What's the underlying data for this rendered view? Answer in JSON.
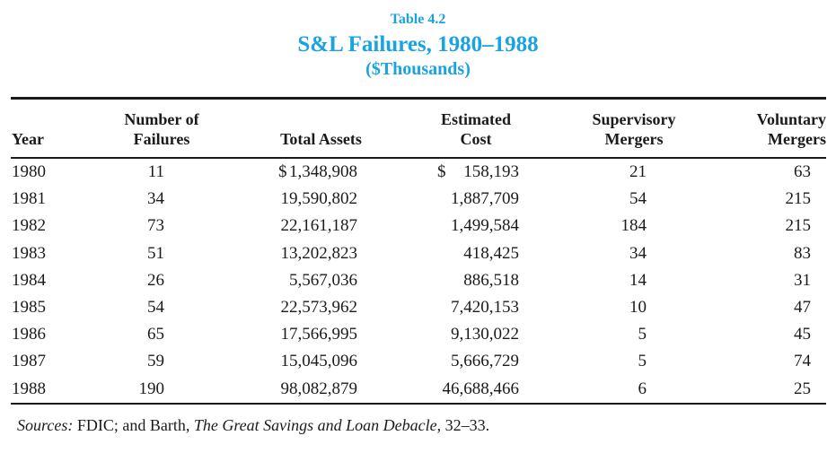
{
  "accent_color": "#1AA3E3",
  "title": {
    "table_number": "Table 4.2",
    "main": "S&L Failures, 1980–1988",
    "subtitle": "($Thousands)"
  },
  "table": {
    "columns": [
      [
        "Year"
      ],
      [
        "Number of",
        "Failures"
      ],
      [
        "Total Assets"
      ],
      [
        "Estimated",
        "Cost"
      ],
      [
        "Supervisory",
        "Mergers"
      ],
      [
        "Voluntary",
        "Mergers"
      ]
    ],
    "rows": [
      {
        "year": "1980",
        "failures": "11",
        "assets_prefix": "$",
        "total_assets": "1,348,908",
        "cost_prefix": "$",
        "estimated_cost": "158,193",
        "supervisory_mergers": "21",
        "voluntary_mergers": "63"
      },
      {
        "year": "1981",
        "failures": "34",
        "total_assets": "19,590,802",
        "estimated_cost": "1,887,709",
        "supervisory_mergers": "54",
        "voluntary_mergers": "215"
      },
      {
        "year": "1982",
        "failures": "73",
        "total_assets": "22,161,187",
        "estimated_cost": "1,499,584",
        "supervisory_mergers": "184",
        "voluntary_mergers": "215"
      },
      {
        "year": "1983",
        "failures": "51",
        "total_assets": "13,202,823",
        "estimated_cost": "418,425",
        "supervisory_mergers": "34",
        "voluntary_mergers": "83"
      },
      {
        "year": "1984",
        "failures": "26",
        "total_assets": "5,567,036",
        "estimated_cost": "886,518",
        "supervisory_mergers": "14",
        "voluntary_mergers": "31"
      },
      {
        "year": "1985",
        "failures": "54",
        "total_assets": "22,573,962",
        "estimated_cost": "7,420,153",
        "supervisory_mergers": "10",
        "voluntary_mergers": "47"
      },
      {
        "year": "1986",
        "failures": "65",
        "total_assets": "17,566,995",
        "estimated_cost": "9,130,022",
        "supervisory_mergers": "5",
        "voluntary_mergers": "45"
      },
      {
        "year": "1987",
        "failures": "59",
        "total_assets": "15,045,096",
        "estimated_cost": "5,666,729",
        "supervisory_mergers": "5",
        "voluntary_mergers": "74"
      },
      {
        "year": "1988",
        "failures": "190",
        "total_assets": "98,082,879",
        "estimated_cost": "46,688,466",
        "supervisory_mergers": "6",
        "voluntary_mergers": "25"
      }
    ]
  },
  "footer": {
    "sources_label": "Sources:",
    "text_before_italic": " FDIC; and Barth, ",
    "book_title": "The Great Savings and Loan Debacle",
    "text_after_italic": ", 32–33."
  }
}
